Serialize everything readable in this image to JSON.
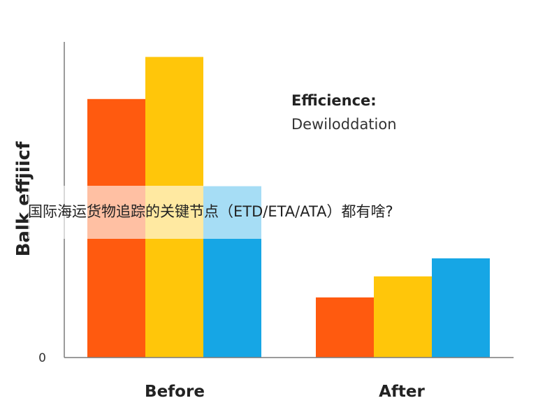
{
  "caption": "国际海运货物追踪的关键节点（ETD/ETA/ATA）都有啥?",
  "chart_data": {
    "type": "bar",
    "categories": [
      "Before",
      "After"
    ],
    "series": [
      {
        "color": "#ff5a0f",
        "values": [
          86,
          20
        ]
      },
      {
        "color": "#ffc60a",
        "values": [
          100,
          27
        ]
      },
      {
        "color": "#16a6e5",
        "values": [
          57,
          33
        ]
      }
    ],
    "ylabel": "Balk effjiicf",
    "yticks": [
      "0"
    ],
    "ylim": [
      0,
      105
    ],
    "grid": false,
    "legend": {
      "title": "Efficience:",
      "subtitle": "Dewiloddation",
      "placement": "top-right"
    }
  }
}
